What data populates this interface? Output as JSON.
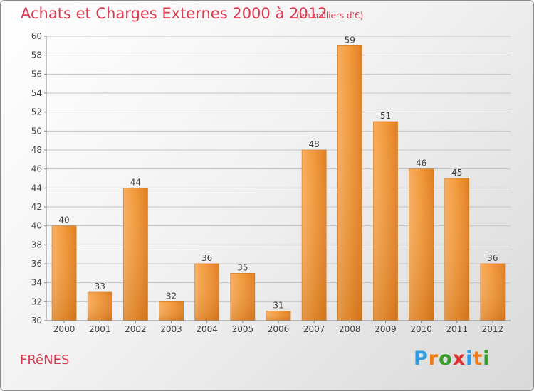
{
  "chart_data": {
    "type": "bar",
    "title": "Achats et Charges Externes 2000 à 2012",
    "subtitle": "(en milliers d'€)",
    "categories": [
      "2000",
      "2001",
      "2002",
      "2003",
      "2004",
      "2005",
      "2006",
      "2007",
      "2008",
      "2009",
      "2010",
      "2011",
      "2012"
    ],
    "values": [
      40,
      33,
      44,
      32,
      36,
      35,
      31,
      48,
      59,
      51,
      46,
      45,
      36
    ],
    "ylim": [
      30,
      60
    ],
    "yticks": [
      30,
      32,
      34,
      36,
      38,
      40,
      42,
      44,
      46,
      48,
      50,
      52,
      54,
      56,
      58,
      60
    ],
    "grid": true,
    "bar_color": "#f0902f"
  },
  "footer": {
    "town": "FRêNES",
    "logo": "Proxiti",
    "logo_colors": [
      "#2f9be0",
      "#f07d1a",
      "#3a9c2e",
      "#e0302b",
      "#2f9be0",
      "#f07d1a",
      "#3a9c2e"
    ]
  }
}
